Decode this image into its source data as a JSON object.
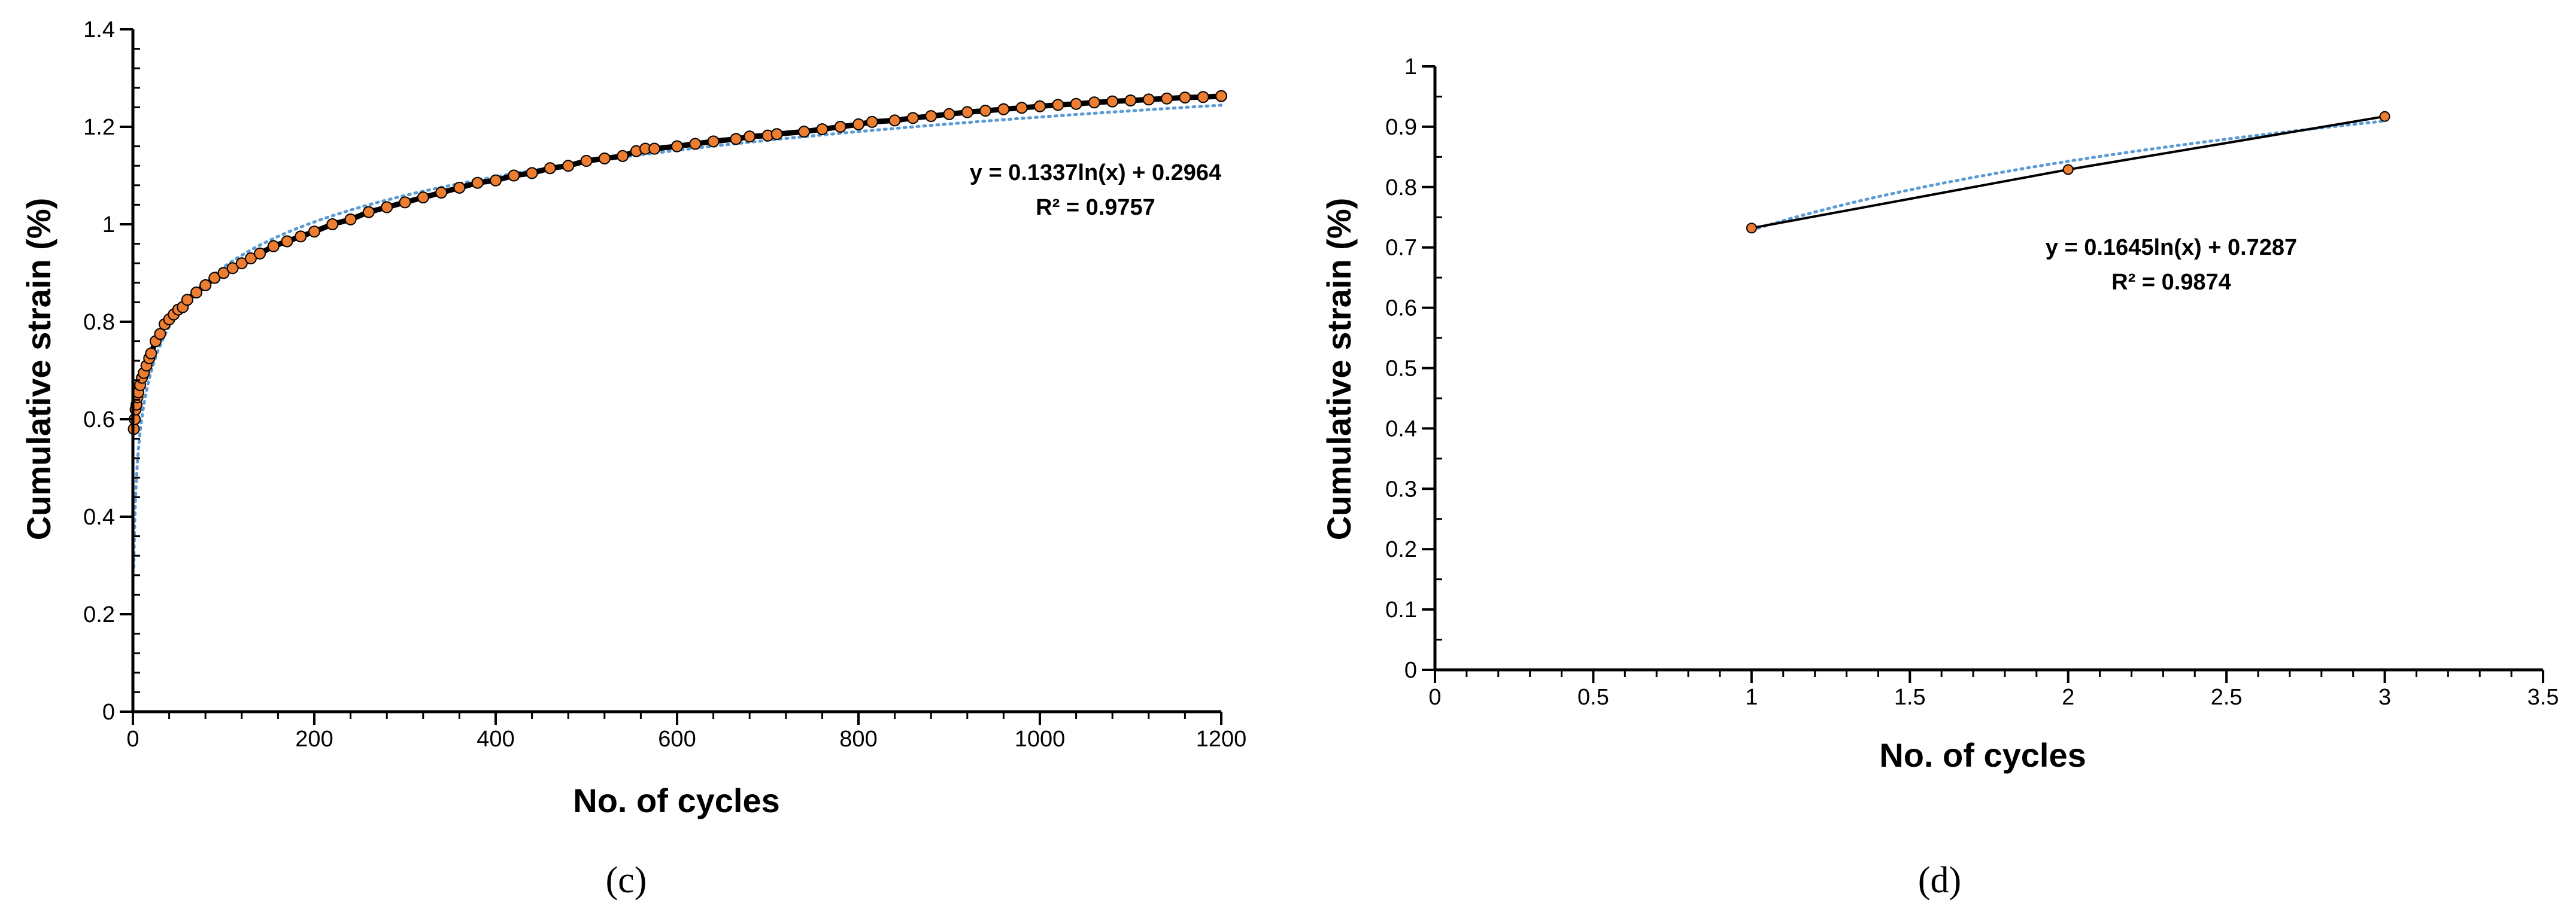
{
  "chart_data": [
    {
      "type": "scatter",
      "panel_label": "(c)",
      "xlabel": "No. of cycles",
      "ylabel": "Cumulative strain (%)",
      "xlim": [
        0,
        1200
      ],
      "ylim": [
        0,
        1.4
      ],
      "x_ticks": [
        "0",
        "200",
        "400",
        "600",
        "800",
        "1000",
        "1200"
      ],
      "y_ticks": [
        "0",
        "0.2",
        "0.4",
        "0.6",
        "0.8",
        "1",
        "1.2",
        "1.4"
      ],
      "marker_color": "#ed7d31",
      "line_color": "#000000",
      "trendline_color": "#5b9bd5",
      "trendline": {
        "kind": "log",
        "a": 0.1337,
        "b": 0.2964
      },
      "equation_text": "y = 0.1337ln(x) + 0.2964",
      "r2_text": "R² = 0.9757",
      "series": [
        {
          "x": [
            1,
            2,
            3,
            4,
            5,
            6,
            8,
            10,
            12,
            15,
            18,
            20,
            25,
            30,
            35,
            40,
            45,
            50,
            55,
            60,
            70,
            80,
            90,
            100,
            110,
            120,
            130,
            140,
            155,
            170,
            185,
            200,
            220,
            240,
            260,
            280,
            300,
            320,
            340,
            360,
            380,
            400,
            420,
            440,
            460,
            480,
            500,
            520,
            540,
            555,
            565,
            575,
            600,
            620,
            640,
            665,
            680,
            700,
            710,
            740,
            760,
            780,
            800,
            815,
            840,
            860,
            880,
            900,
            920,
            940,
            960,
            980,
            1000,
            1020,
            1040,
            1060,
            1080,
            1100,
            1120,
            1140,
            1160,
            1180,
            1200
          ],
          "y": [
            0.58,
            0.6,
            0.62,
            0.63,
            0.645,
            0.655,
            0.67,
            0.685,
            0.695,
            0.71,
            0.725,
            0.735,
            0.76,
            0.775,
            0.795,
            0.805,
            0.815,
            0.825,
            0.83,
            0.845,
            0.86,
            0.875,
            0.89,
            0.9,
            0.91,
            0.92,
            0.93,
            0.94,
            0.955,
            0.965,
            0.975,
            0.985,
            1.0,
            1.01,
            1.025,
            1.035,
            1.045,
            1.055,
            1.065,
            1.075,
            1.085,
            1.09,
            1.1,
            1.105,
            1.115,
            1.12,
            1.13,
            1.135,
            1.14,
            1.15,
            1.155,
            1.155,
            1.16,
            1.165,
            1.17,
            1.175,
            1.18,
            1.182,
            1.185,
            1.19,
            1.195,
            1.2,
            1.205,
            1.21,
            1.213,
            1.218,
            1.222,
            1.226,
            1.23,
            1.233,
            1.236,
            1.239,
            1.242,
            1.245,
            1.247,
            1.25,
            1.252,
            1.254,
            1.256,
            1.258,
            1.26,
            1.261,
            1.263
          ]
        }
      ]
    },
    {
      "type": "line",
      "panel_label": "(d)",
      "xlabel": "No. of cycles",
      "ylabel": "Cumulative strain (%)",
      "xlim": [
        0,
        3.5
      ],
      "ylim": [
        0,
        1
      ],
      "x_ticks": [
        "0",
        "0.5",
        "1",
        "1.5",
        "2",
        "2.5",
        "3",
        "3.5"
      ],
      "y_ticks": [
        "0",
        "0.1",
        "0.2",
        "0.3",
        "0.4",
        "0.5",
        "0.6",
        "0.7",
        "0.8",
        "0.9",
        "1"
      ],
      "marker_color": "#ed7d31",
      "line_color": "#000000",
      "trendline_color": "#5b9bd5",
      "trendline": {
        "kind": "log",
        "a": 0.1645,
        "b": 0.7287
      },
      "equation_text": "y = 0.1645ln(x) + 0.7287",
      "r2_text": "R² = 0.9874",
      "series": [
        {
          "x": [
            1,
            2,
            3
          ],
          "y": [
            0.732,
            0.829,
            0.917
          ]
        }
      ]
    }
  ]
}
